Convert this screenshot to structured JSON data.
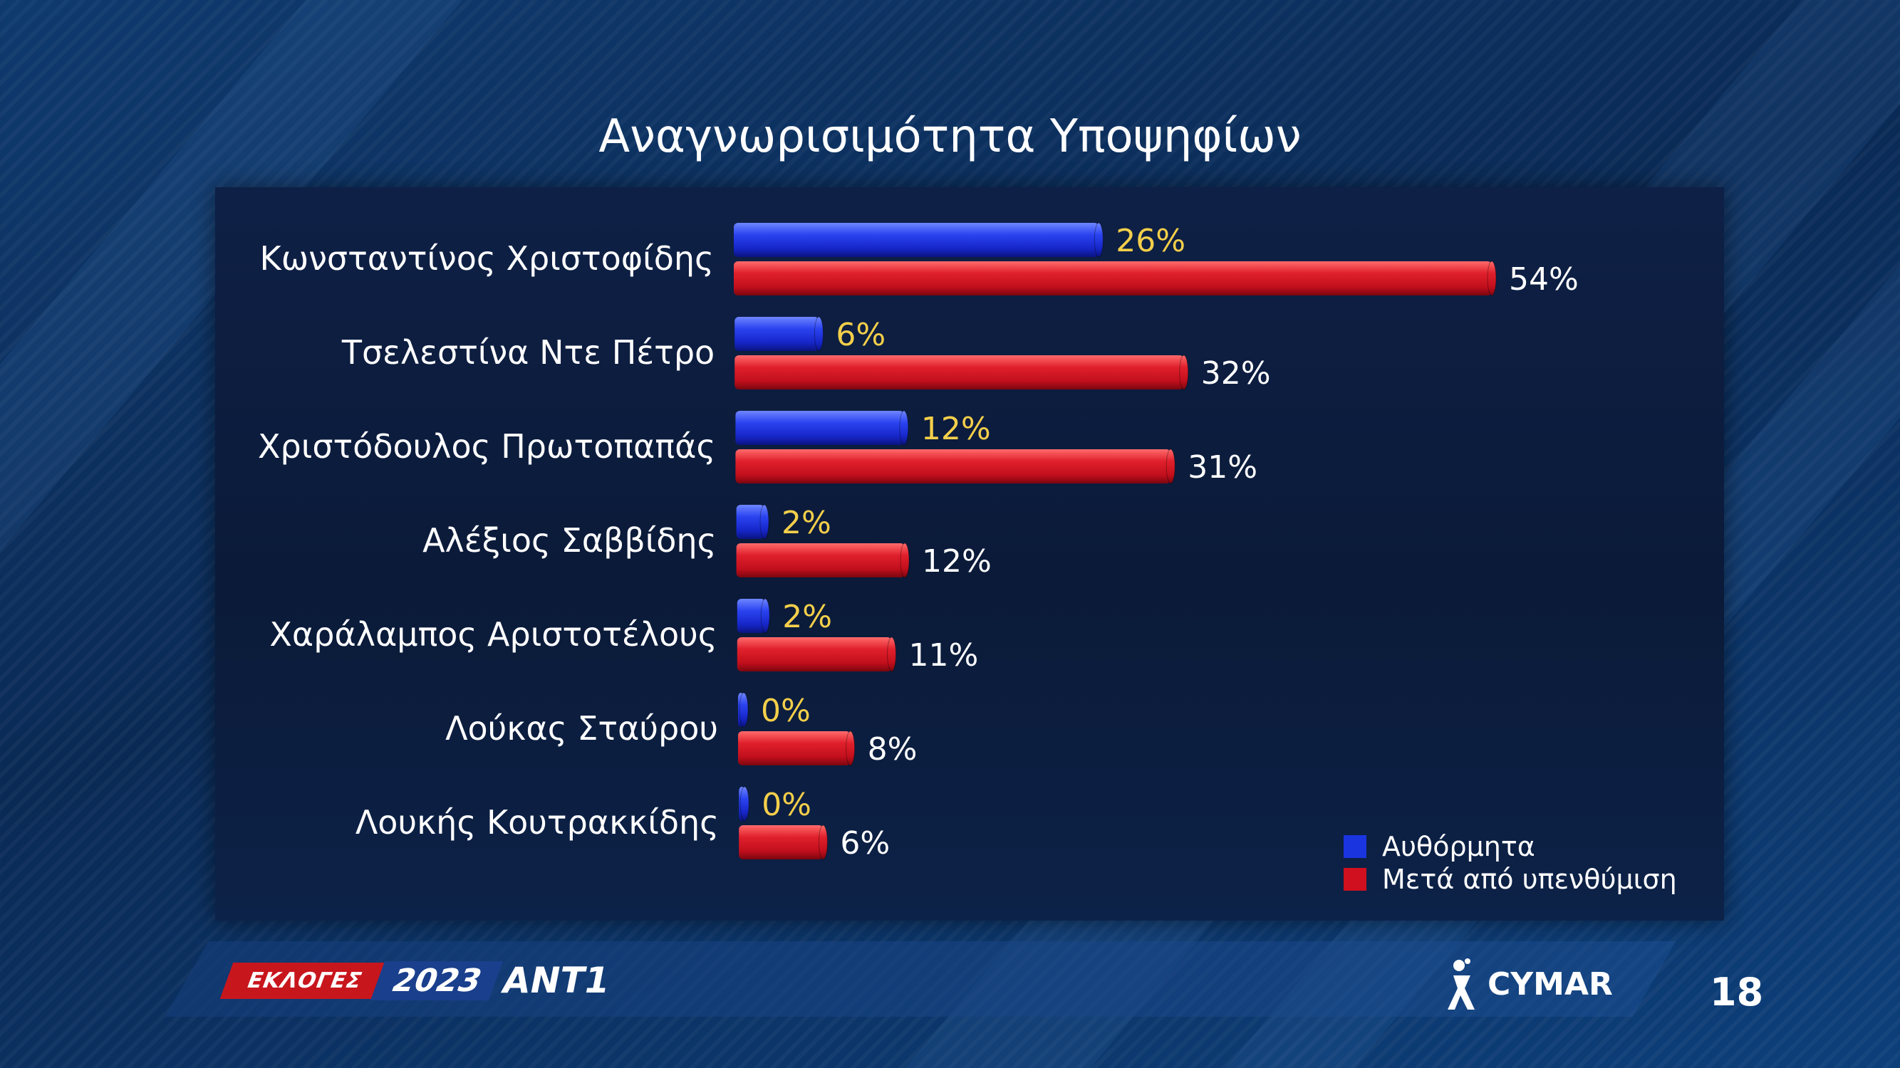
{
  "title": "Αναγνωρισιμότητα Υποψηφίων",
  "chart_data": {
    "type": "bar",
    "orientation": "horizontal",
    "categories": [
      "Κωνσταντίνος Χριστοφίδης",
      "Τσελεστίνα Ντε Πέτρο",
      "Χριστόδουλος Πρωτοπαπάς",
      "Αλέξιος Σαββίδης",
      "Χαράλαμπος Αριστοτέλους",
      "Λούκας Σταύρου",
      "Λουκής Κουτρακκίδης"
    ],
    "series": [
      {
        "name": "Αυθόρμητα",
        "values": [
          26,
          6,
          12,
          2,
          2,
          0,
          0
        ],
        "labels": [
          "26%",
          "6%",
          "12%",
          "2%",
          "2%",
          "0%",
          "0%"
        ],
        "color": "#1a35e0",
        "label_color": "#f4cf4a"
      },
      {
        "name": "Μετά από υπενθύμιση",
        "values": [
          54,
          32,
          31,
          12,
          11,
          8,
          6
        ],
        "labels": [
          "54%",
          "32%",
          "31%",
          "12%",
          "11%",
          "8%",
          "6%"
        ],
        "color": "#d0101e",
        "label_color": "#ffffff"
      }
    ],
    "xlim": [
      0,
      100
    ],
    "grid": false,
    "legend": "bottom-right"
  },
  "footer": {
    "brand_red": "ΕΚΛΟΓΕΣ",
    "brand_blue": "2023",
    "brand_ant": "ANT1",
    "cymar": "CYMAR",
    "page_number": "18"
  }
}
